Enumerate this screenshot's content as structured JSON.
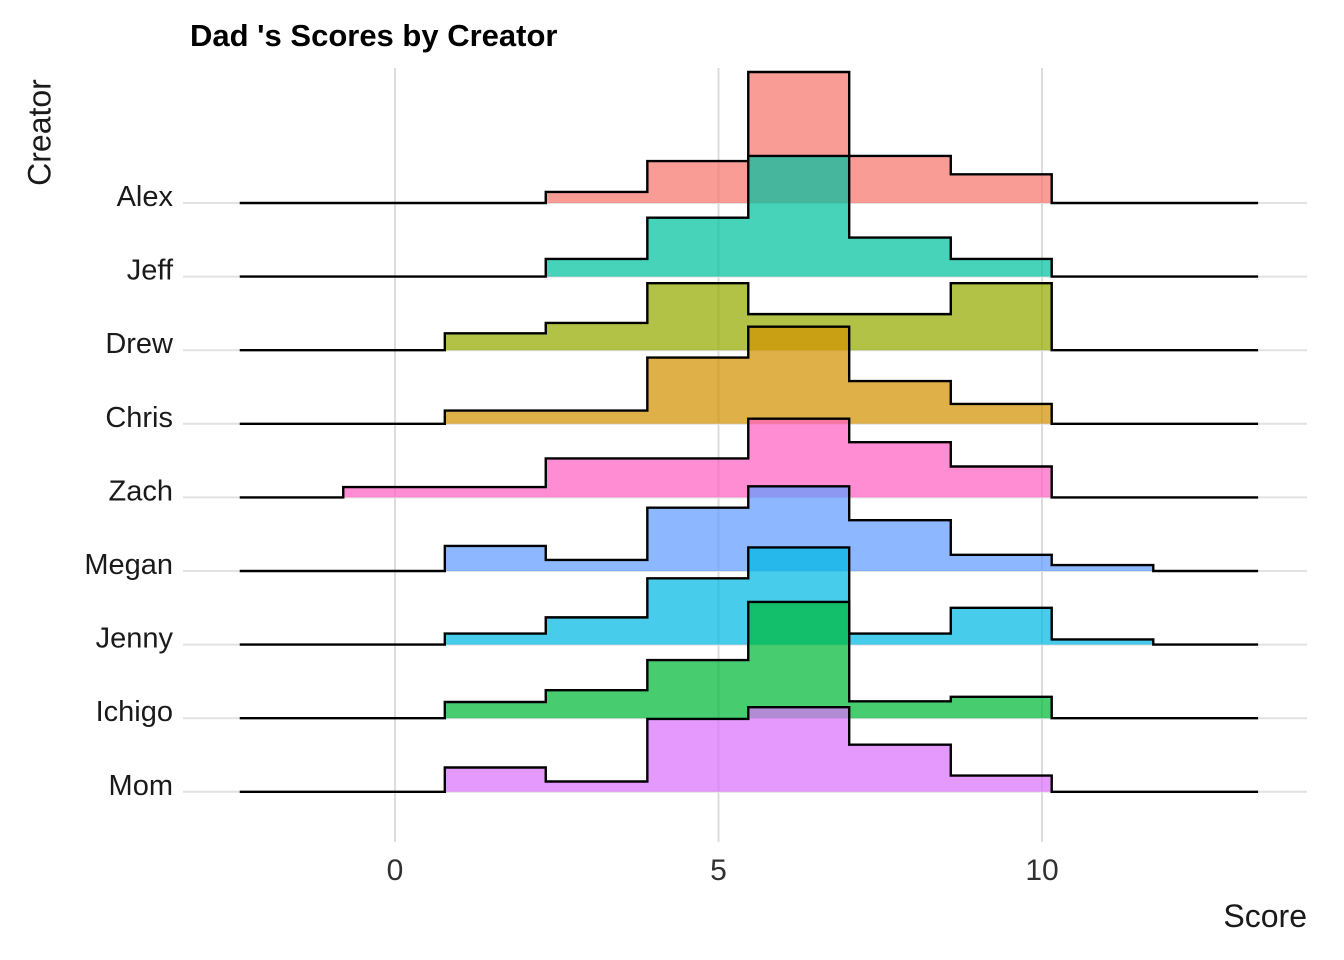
{
  "title": "Dad 's Scores by Creator",
  "axes": {
    "x_label": "Score",
    "y_label": "Creator",
    "x_tick_labels": [
      "0",
      "5",
      "10"
    ],
    "x_tick_values": [
      0,
      5,
      10
    ]
  },
  "chart_data": {
    "type": "ridgeline_step_histogram",
    "title": "Dad 's Scores by Creator",
    "xlabel": "Score",
    "ylabel": "Creator",
    "categories_top_to_bottom": [
      "Alex",
      "Jeff",
      "Drew",
      "Chris",
      "Zach",
      "Megan",
      "Jenny",
      "Ichigo",
      "Mom"
    ],
    "x_ticks": [
      0,
      5,
      10
    ],
    "xlim_panel": [
      -3.28,
      14.1
    ],
    "baseline_extent": [
      -2.4,
      13.34
    ],
    "grid": "vertical-only",
    "legend": "none",
    "bin_edges": [
      -0.8,
      0.77,
      2.33,
      3.9,
      5.46,
      7.02,
      8.59,
      10.15,
      11.72
    ],
    "height_units": "fraction of row spacing",
    "fill_opacity": 0.72,
    "outline_color": "#000000",
    "gridline_color": "#dcdcdc",
    "row_line_color": "#e2e2e2",
    "tick_label_color": "#303030",
    "category_label_color": "#1a1a1a",
    "series": [
      {
        "name": "Alex",
        "color": "#F8766D",
        "heights": [
          0,
          0,
          0.15,
          0.57,
          1.78,
          0.64,
          0.39,
          0
        ]
      },
      {
        "name": "Jeff",
        "color": "#00C19F",
        "heights": [
          0,
          0,
          0.24,
          0.8,
          1.64,
          0.53,
          0.24,
          0
        ]
      },
      {
        "name": "Drew",
        "color": "#93AA00",
        "heights": [
          0,
          0.23,
          0.37,
          0.91,
          0.49,
          0.49,
          0.91,
          0
        ]
      },
      {
        "name": "Chris",
        "color": "#D39200",
        "heights": [
          0,
          0.18,
          0.18,
          0.9,
          1.32,
          0.58,
          0.27,
          0
        ]
      },
      {
        "name": "Zach",
        "color": "#FF61C3",
        "heights": [
          0.14,
          0.14,
          0.53,
          0.53,
          1.07,
          0.75,
          0.42,
          0
        ]
      },
      {
        "name": "Megan",
        "color": "#619CFF",
        "heights": [
          0,
          0.34,
          0.15,
          0.86,
          1.15,
          0.69,
          0.22,
          0.08
        ]
      },
      {
        "name": "Jenny",
        "color": "#00B9E3",
        "heights": [
          0,
          0.15,
          0.37,
          0.9,
          1.32,
          0.15,
          0.5,
          0.07
        ]
      },
      {
        "name": "Ichigo",
        "color": "#00BA38",
        "heights": [
          0,
          0.22,
          0.38,
          0.79,
          1.58,
          0.23,
          0.29,
          0
        ]
      },
      {
        "name": "Mom",
        "color": "#DB72FB",
        "heights": [
          0,
          0.33,
          0.14,
          0.99,
          1.15,
          0.64,
          0.22,
          0
        ]
      }
    ]
  }
}
